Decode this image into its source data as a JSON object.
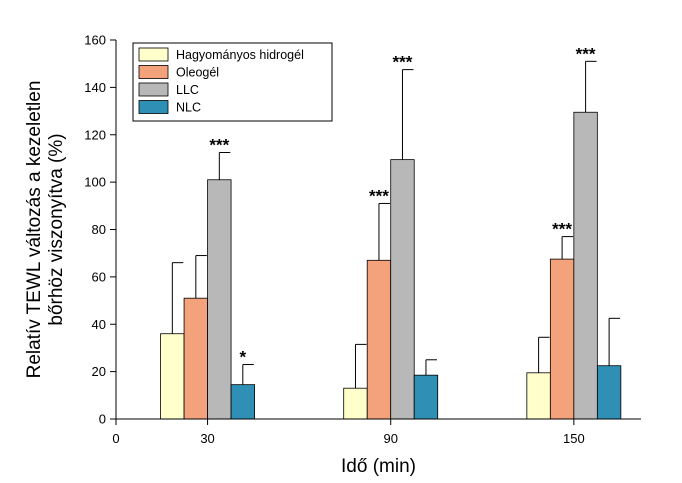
{
  "chart_data": {
    "type": "bar",
    "title": "",
    "xlabel": "Idő (min)",
    "ylabel_lines": [
      "Relatív TEWL változás a kezeletlen",
      "bőrhöz viszonyítva (%)"
    ],
    "ylim": [
      0,
      160
    ],
    "yticks": [
      0,
      20,
      40,
      60,
      80,
      100,
      120,
      140,
      160
    ],
    "xlim": [
      0,
      172
    ],
    "xticks": [
      0,
      30,
      90,
      150
    ],
    "xtick_labels": [
      "0",
      "30",
      "90",
      "150"
    ],
    "categories": [
      "30",
      "90",
      "150"
    ],
    "category_x": [
      30,
      90,
      150
    ],
    "series": [
      {
        "name": "Hagyományos hidrogél",
        "color": "#ffffcc",
        "values": [
          36,
          13,
          19.5
        ],
        "errors": [
          30,
          18.5,
          15
        ],
        "significance": [
          "",
          "",
          ""
        ]
      },
      {
        "name": "Oleogél",
        "color": "#f4a27b",
        "values": [
          51,
          67,
          67.5
        ],
        "errors": [
          18,
          24,
          9.5
        ],
        "significance": [
          "",
          "***",
          "***"
        ]
      },
      {
        "name": "LLC",
        "color": "#b8b8b8",
        "values": [
          101,
          109.5,
          129.5
        ],
        "errors": [
          11.5,
          38,
          21.5
        ],
        "significance": [
          "***",
          "***",
          "***"
        ]
      },
      {
        "name": "NLC",
        "color": "#2f8fb5",
        "values": [
          14.5,
          18.5,
          22.5
        ],
        "errors": [
          8.5,
          6.5,
          20
        ],
        "significance": [
          "*",
          "",
          ""
        ]
      }
    ],
    "legend_position": "top-left",
    "grid": false
  }
}
